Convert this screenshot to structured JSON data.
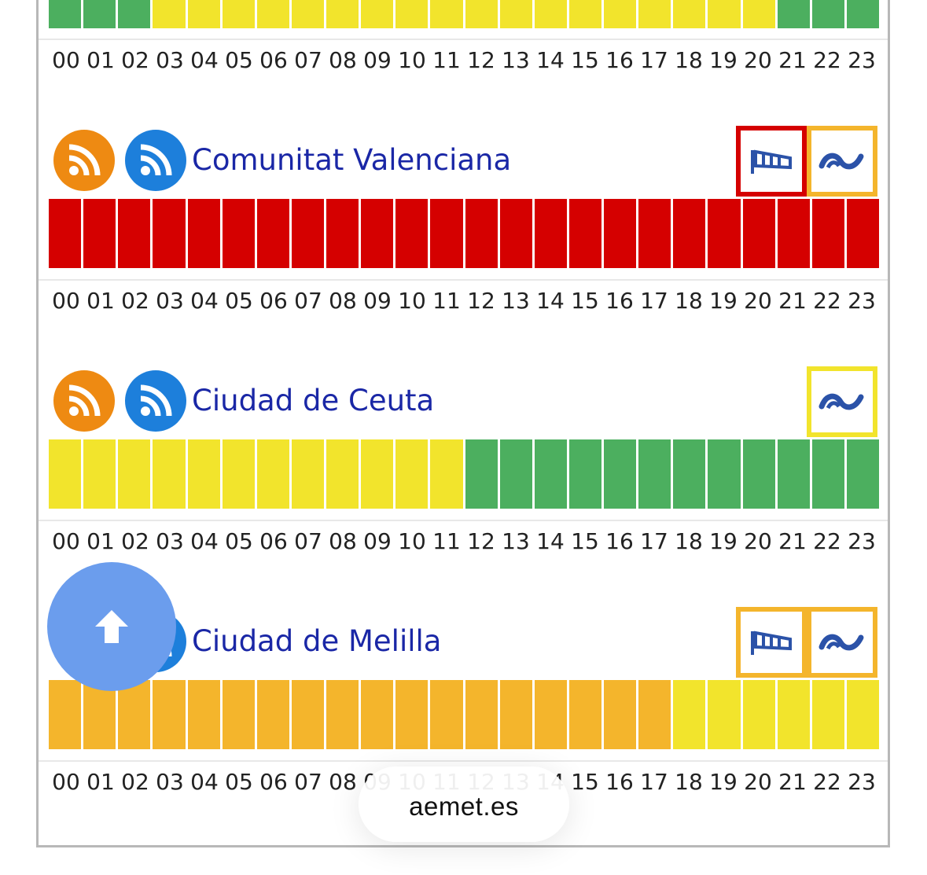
{
  "colors": {
    "green": "#4caf5f",
    "yellow": "#f2e42c",
    "orange": "#f4b52c",
    "red": "#d50000",
    "title_blue": "#1a27a6",
    "rss_orange": "#ee8a12",
    "rss_blue": "#1d7fdb",
    "icon_blue": "#2b52a8",
    "fab": "#6b9ded"
  },
  "hours": [
    "00",
    "01",
    "02",
    "03",
    "04",
    "05",
    "06",
    "07",
    "08",
    "09",
    "10",
    "11",
    "12",
    "13",
    "14",
    "15",
    "16",
    "17",
    "18",
    "19",
    "20",
    "21",
    "22",
    "23"
  ],
  "top_strip": {
    "levels": [
      "green",
      "green",
      "green",
      "yellow",
      "yellow",
      "yellow",
      "yellow",
      "yellow",
      "yellow",
      "yellow",
      "yellow",
      "yellow",
      "yellow",
      "yellow",
      "yellow",
      "yellow",
      "yellow",
      "yellow",
      "yellow",
      "yellow",
      "yellow",
      "green",
      "green",
      "green"
    ]
  },
  "regions": [
    {
      "name": "Comunitat Valenciana",
      "warnings": [
        {
          "icon": "wind-flag-icon",
          "level": "red"
        },
        {
          "icon": "coastal-waves-icon",
          "level": "orange"
        }
      ],
      "levels": [
        "red",
        "red",
        "red",
        "red",
        "red",
        "red",
        "red",
        "red",
        "red",
        "red",
        "red",
        "red",
        "red",
        "red",
        "red",
        "red",
        "red",
        "red",
        "red",
        "red",
        "red",
        "red",
        "red",
        "red"
      ]
    },
    {
      "name": "Ciudad de Ceuta",
      "warnings": [
        {
          "icon": "coastal-waves-icon",
          "level": "yellow"
        }
      ],
      "levels": [
        "yellow",
        "yellow",
        "yellow",
        "yellow",
        "yellow",
        "yellow",
        "yellow",
        "yellow",
        "yellow",
        "yellow",
        "yellow",
        "yellow",
        "green",
        "green",
        "green",
        "green",
        "green",
        "green",
        "green",
        "green",
        "green",
        "green",
        "green",
        "green"
      ]
    },
    {
      "name": "Ciudad de Melilla",
      "warnings": [
        {
          "icon": "wind-flag-icon",
          "level": "orange"
        },
        {
          "icon": "coastal-waves-icon",
          "level": "orange"
        }
      ],
      "levels": [
        "orange",
        "orange",
        "orange",
        "orange",
        "orange",
        "orange",
        "orange",
        "orange",
        "orange",
        "orange",
        "orange",
        "orange",
        "orange",
        "orange",
        "orange",
        "orange",
        "orange",
        "orange",
        "yellow",
        "yellow",
        "yellow",
        "yellow",
        "yellow",
        "yellow"
      ]
    }
  ],
  "scroll_top_button": {
    "icon": "arrow-up-icon"
  },
  "url_bar": {
    "text": "aemet.es"
  }
}
